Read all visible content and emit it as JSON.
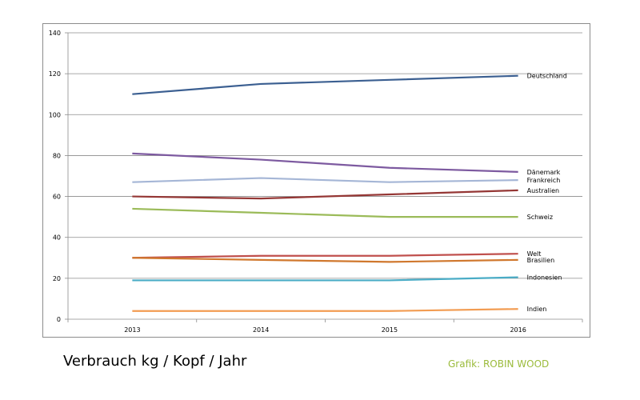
{
  "title": "Verbrauch kg / Kopf / Jahr",
  "credit": "Grafik: ROBIN WOOD",
  "credit_color": "#9bbb3b",
  "chart_data": {
    "type": "line",
    "x": [
      "2013",
      "2014",
      "2015",
      "2016"
    ],
    "ylim": [
      0,
      140
    ],
    "yticks": [
      0,
      20,
      40,
      60,
      80,
      100,
      120,
      140
    ],
    "grid": true,
    "legend": "inline-right",
    "series": [
      {
        "name": "Deutschland",
        "color": "#3b5f91",
        "values": [
          110,
          115,
          117,
          119
        ]
      },
      {
        "name": "Dänemark",
        "color": "#7d5aa0",
        "values": [
          81,
          78,
          74,
          72
        ]
      },
      {
        "name": "Frankreich",
        "color": "#a5b6d6",
        "values": [
          67,
          69,
          67,
          68
        ]
      },
      {
        "name": "Australien",
        "color": "#953735",
        "values": [
          60,
          59,
          61,
          63
        ]
      },
      {
        "name": "Schweiz",
        "color": "#9bbb59",
        "values": [
          54,
          52,
          50,
          50
        ]
      },
      {
        "name": "Welt",
        "color": "#c0504d",
        "values": [
          30,
          31,
          31,
          32
        ]
      },
      {
        "name": "Brasilien",
        "color": "#d0782e",
        "values": [
          30,
          29,
          28,
          29
        ]
      },
      {
        "name": "Indonesien",
        "color": "#4aacc6",
        "values": [
          19,
          19,
          19,
          20.5
        ]
      },
      {
        "name": "Indien",
        "color": "#f29c52",
        "values": [
          4,
          4,
          4,
          5
        ]
      }
    ]
  }
}
